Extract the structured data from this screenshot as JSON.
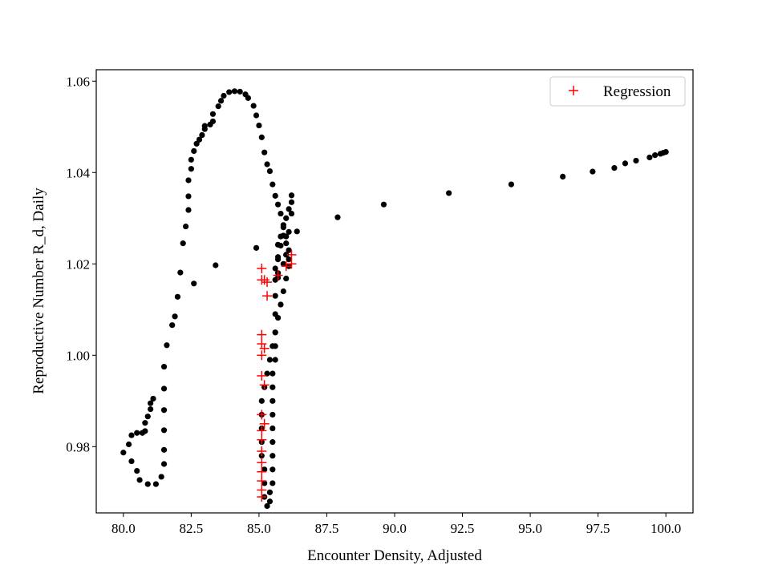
{
  "chart_data": {
    "type": "scatter",
    "title": "",
    "xlabel": "Encounter Density, Adjusted",
    "ylabel": "Reproductive Number R_d, Daily",
    "xlim": [
      79.0,
      101.0
    ],
    "ylim": [
      0.9655,
      1.0625
    ],
    "xticks": [
      80.0,
      82.5,
      85.0,
      87.5,
      90.0,
      92.5,
      95.0,
      97.5,
      100.0
    ],
    "xtick_labels": [
      "80.0",
      "82.5",
      "85.0",
      "87.5",
      "90.0",
      "92.5",
      "95.0",
      "97.5",
      "100.0"
    ],
    "yticks": [
      0.98,
      1.0,
      1.02,
      1.04,
      1.06
    ],
    "ytick_labels": [
      "0.98",
      "1.00",
      "1.02",
      "1.04",
      "1.06"
    ],
    "grid": false,
    "legend": {
      "position": "upper right",
      "entries": [
        "Regression"
      ]
    },
    "series": [
      {
        "marker": "dot",
        "color": "#000000",
        "points": [
          [
            80.0,
            0.9787
          ],
          [
            80.2,
            0.9805
          ],
          [
            80.3,
            0.9825
          ],
          [
            80.5,
            0.983
          ],
          [
            80.7,
            0.983
          ],
          [
            80.8,
            0.9834
          ],
          [
            80.8,
            0.9852
          ],
          [
            80.9,
            0.9866
          ],
          [
            81.0,
            0.9882
          ],
          [
            81.0,
            0.9895
          ],
          [
            81.1,
            0.9905
          ],
          [
            80.3,
            0.9768
          ],
          [
            80.5,
            0.9747
          ],
          [
            80.6,
            0.9727
          ],
          [
            80.9,
            0.9718
          ],
          [
            81.2,
            0.9718
          ],
          [
            81.4,
            0.9734
          ],
          [
            81.5,
            0.9762
          ],
          [
            81.5,
            0.9793
          ],
          [
            81.5,
            0.9836
          ],
          [
            81.5,
            0.988
          ],
          [
            81.5,
            0.9927
          ],
          [
            81.5,
            0.9975
          ],
          [
            81.6,
            1.0022
          ],
          [
            81.8,
            1.0066
          ],
          [
            81.9,
            1.0085
          ],
          [
            82.0,
            1.0128
          ],
          [
            82.1,
            1.0181
          ],
          [
            82.2,
            1.0245
          ],
          [
            82.3,
            1.0282
          ],
          [
            82.4,
            1.0318
          ],
          [
            82.4,
            1.0348
          ],
          [
            82.4,
            1.0383
          ],
          [
            82.5,
            1.0408
          ],
          [
            82.5,
            1.0428
          ],
          [
            82.6,
            1.0447
          ],
          [
            82.7,
            1.0463
          ],
          [
            82.8,
            1.0472
          ],
          [
            82.9,
            1.0482
          ],
          [
            83.0,
            1.0495
          ],
          [
            83.0,
            1.0502
          ],
          [
            83.2,
            1.0505
          ],
          [
            83.3,
            1.0512
          ],
          [
            83.3,
            1.0528
          ],
          [
            83.5,
            1.0545
          ],
          [
            83.6,
            1.0557
          ],
          [
            83.7,
            1.0568
          ],
          [
            83.9,
            1.0576
          ],
          [
            84.1,
            1.0578
          ],
          [
            84.3,
            1.0577
          ],
          [
            84.5,
            1.0571
          ],
          [
            84.6,
            1.0563
          ],
          [
            84.8,
            1.0546
          ],
          [
            84.9,
            1.0525
          ],
          [
            85.0,
            1.0503
          ],
          [
            85.1,
            1.0477
          ],
          [
            85.2,
            1.0444
          ],
          [
            85.3,
            1.0418
          ],
          [
            85.4,
            1.0403
          ],
          [
            85.5,
            1.0374
          ],
          [
            85.6,
            1.0349
          ],
          [
            85.7,
            1.033
          ],
          [
            85.8,
            1.031
          ],
          [
            85.9,
            1.0285
          ],
          [
            86.0,
            1.026
          ],
          [
            86.0,
            1.022
          ],
          [
            86.1,
            1.0195
          ],
          [
            86.0,
            1.0168
          ],
          [
            85.9,
            1.014
          ],
          [
            85.8,
            1.0111
          ],
          [
            85.7,
            1.0082
          ],
          [
            85.6,
            1.005
          ],
          [
            85.6,
            1.002
          ],
          [
            85.6,
            0.999
          ],
          [
            85.5,
            0.996
          ],
          [
            85.5,
            0.993
          ],
          [
            85.5,
            0.99
          ],
          [
            85.5,
            0.987
          ],
          [
            85.5,
            0.984
          ],
          [
            85.5,
            0.981
          ],
          [
            85.5,
            0.978
          ],
          [
            85.5,
            0.975
          ],
          [
            85.5,
            0.972
          ],
          [
            85.4,
            0.97
          ],
          [
            85.4,
            0.968
          ],
          [
            85.3,
            0.967
          ],
          [
            85.2,
            0.969
          ],
          [
            85.2,
            0.972
          ],
          [
            85.2,
            0.975
          ],
          [
            85.1,
            0.978
          ],
          [
            85.1,
            0.981
          ],
          [
            85.1,
            0.984
          ],
          [
            85.1,
            0.987
          ],
          [
            85.1,
            0.99
          ],
          [
            85.2,
            0.993
          ],
          [
            85.3,
            0.996
          ],
          [
            85.4,
            0.999
          ],
          [
            85.5,
            1.002
          ],
          [
            85.6,
            1.005
          ],
          [
            85.6,
            1.009
          ],
          [
            85.6,
            1.013
          ],
          [
            85.7,
            1.017
          ],
          [
            85.7,
            1.021
          ],
          [
            85.8,
            1.024
          ],
          [
            85.8,
            1.026
          ],
          [
            85.9,
            1.028
          ],
          [
            86.0,
            1.03
          ],
          [
            86.1,
            1.032
          ],
          [
            86.2,
            1.0335
          ],
          [
            86.2,
            1.035
          ],
          [
            86.2,
            1.031
          ],
          [
            86.1,
            1.027
          ],
          [
            86.1,
            1.023
          ],
          [
            86.0,
            1.022
          ],
          [
            86.0,
            1.0245
          ],
          [
            85.9,
            1.0262
          ],
          [
            85.7,
            1.0242
          ],
          [
            85.7,
            1.0215
          ],
          [
            85.6,
            1.019
          ],
          [
            85.6,
            1.0165
          ],
          [
            85.7,
            1.018
          ],
          [
            85.9,
            1.02
          ],
          [
            86.1,
            1.021
          ],
          [
            84.9,
            1.0235
          ],
          [
            83.4,
            1.0197
          ],
          [
            82.6,
            1.0157
          ],
          [
            86.4,
            1.0271
          ],
          [
            87.9,
            1.0302
          ],
          [
            89.6,
            1.033
          ],
          [
            92.0,
            1.0355
          ],
          [
            94.3,
            1.0374
          ],
          [
            96.2,
            1.0391
          ],
          [
            97.3,
            1.0402
          ],
          [
            98.1,
            1.041
          ],
          [
            98.5,
            1.042
          ],
          [
            98.9,
            1.0426
          ],
          [
            99.4,
            1.0433
          ],
          [
            99.6,
            1.0438
          ],
          [
            99.8,
            1.0441
          ],
          [
            99.9,
            1.0443
          ],
          [
            100.0,
            1.0445
          ]
        ]
      },
      {
        "name": "Regression",
        "marker": "plus",
        "color": "#ff0000",
        "points": [
          [
            85.1,
            1.019
          ],
          [
            85.1,
            1.0165
          ],
          [
            85.2,
            1.0165
          ],
          [
            85.3,
            1.016
          ],
          [
            85.3,
            1.013
          ],
          [
            85.7,
            1.0175
          ],
          [
            86.0,
            1.0195
          ],
          [
            86.2,
            1.02
          ],
          [
            86.2,
            1.022
          ],
          [
            85.1,
            1.0045
          ],
          [
            85.1,
            1.0025
          ],
          [
            85.2,
            1.0015
          ],
          [
            85.1,
            1.0
          ],
          [
            85.1,
            0.9955
          ],
          [
            85.2,
            0.9935
          ],
          [
            85.1,
            0.987
          ],
          [
            85.2,
            0.985
          ],
          [
            85.1,
            0.9835
          ],
          [
            85.1,
            0.9815
          ],
          [
            85.1,
            0.979
          ],
          [
            85.1,
            0.9765
          ],
          [
            85.1,
            0.9745
          ],
          [
            85.1,
            0.9725
          ],
          [
            85.1,
            0.9705
          ],
          [
            85.1,
            0.969
          ]
        ]
      }
    ]
  }
}
